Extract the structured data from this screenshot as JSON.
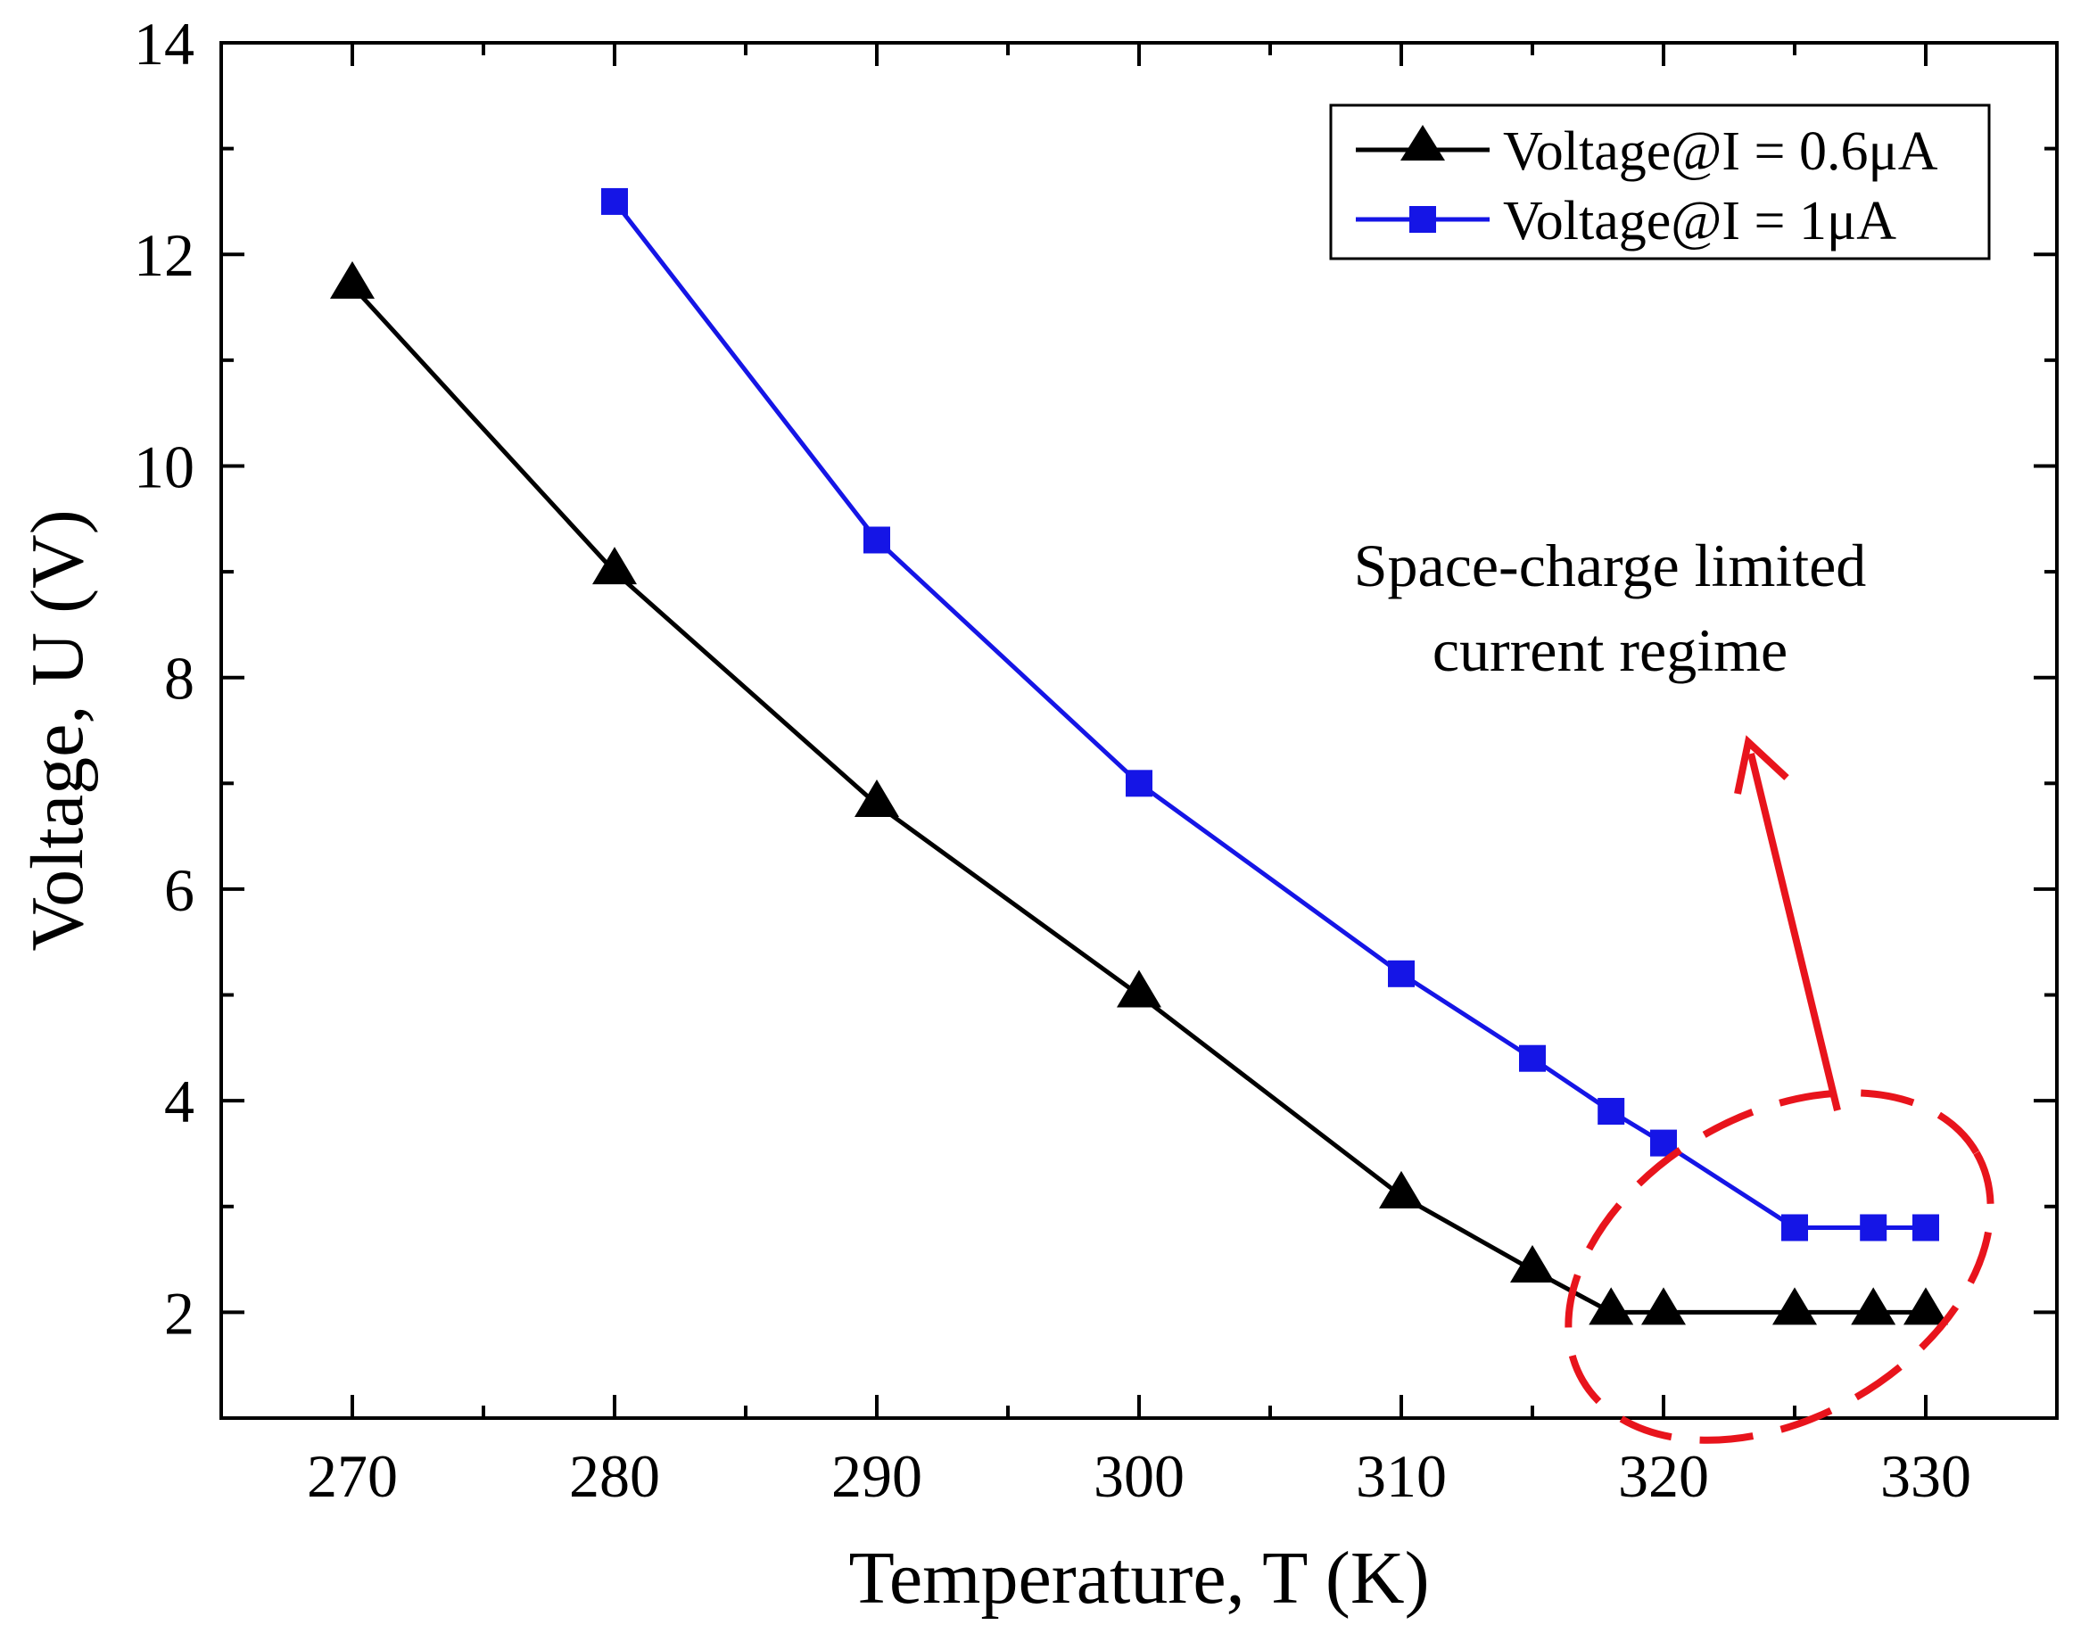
{
  "chart_data": {
    "type": "line",
    "title": "",
    "xlabel": "Temperature, T (K)",
    "ylabel": "Voltage, U (V)",
    "xlim": [
      265,
      335
    ],
    "ylim": [
      1,
      14
    ],
    "xticks": [
      270,
      280,
      290,
      300,
      310,
      320,
      330
    ],
    "yticks": [
      2,
      4,
      6,
      8,
      10,
      12,
      14
    ],
    "xtick_labels": [
      "270",
      "280",
      "290",
      "300",
      "310",
      "320",
      "330"
    ],
    "ytick_labels": [
      "2",
      "4",
      "6",
      "8",
      "10",
      "12",
      "14"
    ],
    "legend_position": "top-right",
    "series": [
      {
        "name": "Voltage@I = 0.6μA",
        "color": "#000000",
        "marker": "triangle",
        "x": [
          270,
          280,
          290,
          300,
          310,
          315,
          318,
          320,
          325,
          328,
          330
        ],
        "y": [
          11.7,
          9.0,
          6.8,
          5.0,
          3.1,
          2.4,
          2.0,
          2.0,
          2.0,
          2.0,
          2.0
        ]
      },
      {
        "name": "Voltage@I = 1μA",
        "color": "#1515e6",
        "marker": "square",
        "x": [
          280,
          290,
          300,
          310,
          315,
          318,
          320,
          325,
          328,
          330
        ],
        "y": [
          12.5,
          9.3,
          7.0,
          5.2,
          4.4,
          3.9,
          3.6,
          2.8,
          2.8,
          2.8
        ]
      }
    ],
    "annotations": [
      {
        "text_lines": [
          "Space-charge limited",
          "current regime"
        ],
        "color": "#e8141c",
        "shape": "dashed-ellipse-with-arrow"
      }
    ]
  }
}
